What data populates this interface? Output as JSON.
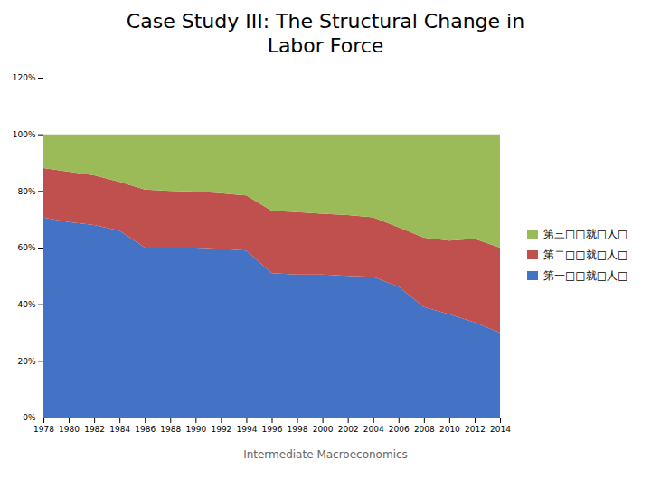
{
  "chart_data": {
    "type": "area",
    "stacked": true,
    "title": "Case Study III: The Structural Change in\nLabor Force",
    "subtitle": "Intermediate Macroeconomics",
    "x": [
      1978,
      1980,
      1982,
      1984,
      1986,
      1988,
      1990,
      1992,
      1994,
      1996,
      1998,
      2000,
      2002,
      2004,
      2006,
      2008,
      2010,
      2012,
      2014
    ],
    "series": [
      {
        "name": "第一□□就□人□",
        "color": "#4472C4",
        "values": [
          0.706,
          0.69,
          0.68,
          0.66,
          0.6,
          0.6,
          0.6,
          0.596,
          0.59,
          0.51,
          0.505,
          0.505,
          0.5,
          0.497,
          0.462,
          0.39,
          0.365,
          0.336,
          0.3
        ]
      },
      {
        "name": "第二□□就□人□",
        "color": "#C0504D",
        "values": [
          0.175,
          0.178,
          0.175,
          0.172,
          0.205,
          0.2,
          0.198,
          0.196,
          0.194,
          0.22,
          0.22,
          0.215,
          0.215,
          0.21,
          0.21,
          0.245,
          0.26,
          0.295,
          0.3
        ]
      },
      {
        "name": "第三□□就□人□",
        "color": "#9BBB59",
        "values": [
          0.119,
          0.132,
          0.145,
          0.168,
          0.195,
          0.2,
          0.202,
          0.208,
          0.216,
          0.27,
          0.275,
          0.28,
          0.285,
          0.293,
          0.328,
          0.365,
          0.375,
          0.369,
          0.4
        ]
      }
    ],
    "xlim": [
      1978,
      2014
    ],
    "xticks": [
      1978,
      1980,
      1982,
      1984,
      1986,
      1988,
      1990,
      1992,
      1994,
      1996,
      1998,
      2000,
      2002,
      2004,
      2006,
      2008,
      2010,
      2012,
      2014
    ],
    "ylim": [
      0,
      1.2
    ],
    "yticks": [
      {
        "value": 0,
        "label": "0%"
      },
      {
        "value": 0.2,
        "label": "20%"
      },
      {
        "value": 0.4,
        "label": "40%"
      },
      {
        "value": 0.6,
        "label": "60%"
      },
      {
        "value": 0.8,
        "label": "80%"
      },
      {
        "value": 1.0,
        "label": "100%"
      },
      {
        "value": 1.2,
        "label": "120%"
      }
    ],
    "legend": "right",
    "grid": false
  }
}
